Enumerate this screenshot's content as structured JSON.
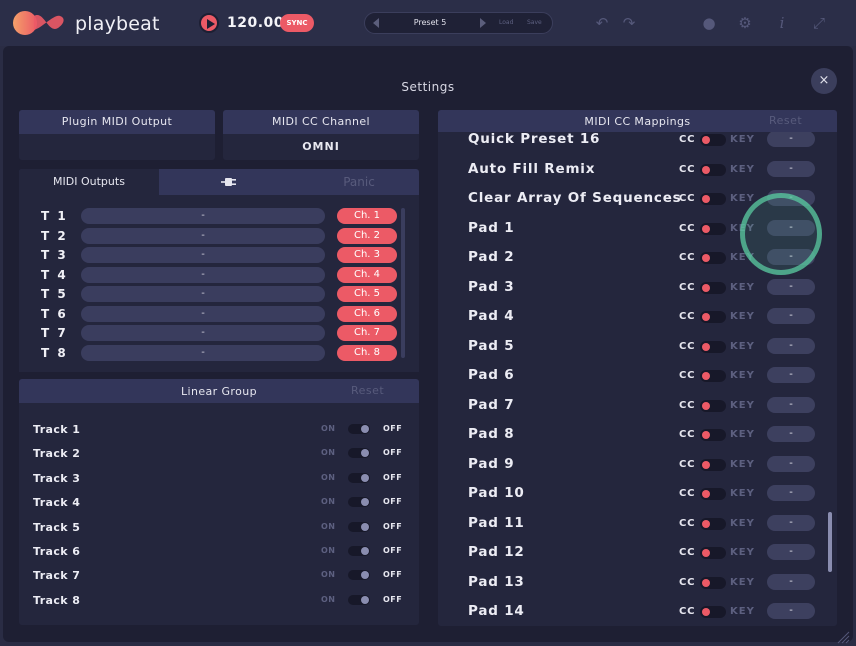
{
  "topbar": {
    "brand": "playbeat",
    "bpm": "120.00",
    "sync_label": "SYNC",
    "preset_name": "Preset 5",
    "load_label": "Load",
    "save_label": "Save",
    "icons": [
      "undo-icon",
      "redo-icon",
      "record-icon",
      "gear-icon",
      "info-icon",
      "expand-icon"
    ]
  },
  "settings": {
    "title": "Settings",
    "close_label": "×"
  },
  "plugin_midi_output": {
    "header": "Plugin MIDI Output",
    "value": ""
  },
  "midi_cc_channel": {
    "header": "MIDI CC Channel",
    "value": "OMNI"
  },
  "midi_outputs": {
    "tab_label": "MIDI Outputs",
    "panic_label": "Panic",
    "rows": [
      {
        "track": "T 1",
        "value": "-",
        "channel": "Ch. 1"
      },
      {
        "track": "T 2",
        "value": "-",
        "channel": "Ch. 2"
      },
      {
        "track": "T 3",
        "value": "-",
        "channel": "Ch. 3"
      },
      {
        "track": "T 4",
        "value": "-",
        "channel": "Ch. 4"
      },
      {
        "track": "T 5",
        "value": "-",
        "channel": "Ch. 5"
      },
      {
        "track": "T 6",
        "value": "-",
        "channel": "Ch. 6"
      },
      {
        "track": "T 7",
        "value": "-",
        "channel": "Ch. 7"
      },
      {
        "track": "T 8",
        "value": "-",
        "channel": "Ch. 8"
      }
    ]
  },
  "linear_group": {
    "header": "Linear Group",
    "reset_label": "Reset",
    "on_label": "ON",
    "off_label": "OFF",
    "tracks": [
      "Track 1",
      "Track 2",
      "Track 3",
      "Track 4",
      "Track 5",
      "Track 6",
      "Track 7",
      "Track 8"
    ]
  },
  "cc_mappings": {
    "header": "MIDI CC Mappings",
    "reset_label": "Reset",
    "cc_label": "CC",
    "key_label": "KEY",
    "button_label": "-",
    "rows": [
      "Quick Preset 16",
      "Auto Fill Remix",
      "Clear Array Of Sequences",
      "Pad 1",
      "Pad 2",
      "Pad 3",
      "Pad 4",
      "Pad 5",
      "Pad 6",
      "Pad 7",
      "Pad 8",
      "Pad 9",
      "Pad 10",
      "Pad 11",
      "Pad 12",
      "Pad 13",
      "Pad 14"
    ]
  },
  "colors": {
    "accent": "#ec5a66",
    "panel": "#1e1f33",
    "header": "#33365a"
  }
}
